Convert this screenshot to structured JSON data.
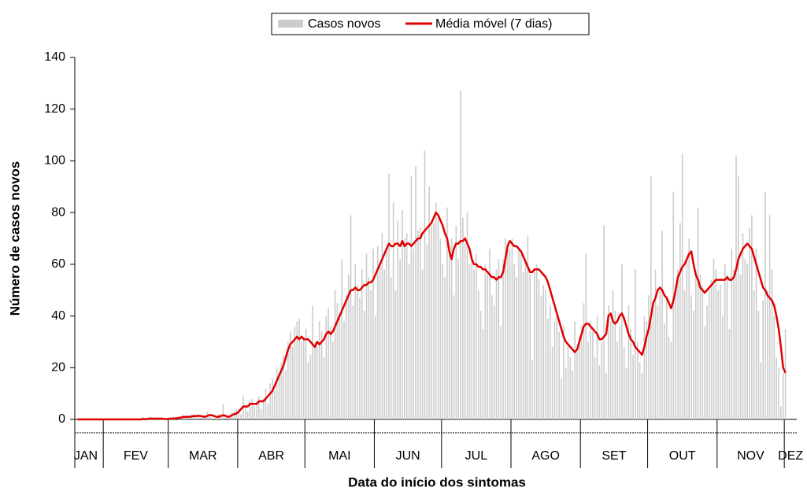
{
  "chart_data": {
    "type": "bar_line",
    "x_label": "Data do início dos sintomas",
    "y_label": "Número de casos novos",
    "categories": [
      "JAN",
      "FEV",
      "MAR",
      "ABR",
      "MAI",
      "JUN",
      "JUL",
      "AGO",
      "SET",
      "OUT",
      "NOV",
      "DEZ"
    ],
    "ylim": [
      0,
      140
    ],
    "yticks": [
      0,
      20,
      40,
      60,
      80,
      100,
      120,
      140
    ],
    "series": [
      {
        "name": "Casos novos",
        "color": "#cccccc",
        "mark": "bar",
        "values": [
          [
            0,
            0,
            0,
            0,
            0,
            0,
            0,
            0,
            0,
            0,
            0,
            0
          ],
          [
            0,
            0,
            0,
            0,
            0,
            0,
            0,
            0,
            0,
            0,
            0,
            0,
            0,
            0,
            0,
            0,
            0,
            1,
            0,
            0,
            1,
            1,
            0,
            0,
            0,
            0,
            0,
            0,
            0
          ],
          [
            0,
            0,
            1,
            0,
            1,
            1,
            2,
            1,
            1,
            0,
            2,
            2,
            1,
            1,
            0,
            1,
            1,
            3,
            2,
            1,
            0,
            1,
            2,
            2,
            6,
            0,
            0,
            1,
            3,
            3,
            4
          ],
          [
            4,
            2,
            9,
            6,
            3,
            7,
            8,
            5,
            7,
            9,
            4,
            8,
            12,
            6,
            14,
            16,
            11,
            20,
            18,
            22,
            25,
            19,
            30,
            34,
            28,
            36,
            38,
            39,
            30,
            32
          ],
          [
            35,
            22,
            25,
            44,
            30,
            28,
            38,
            34,
            24,
            40,
            43,
            36,
            30,
            50,
            45,
            40,
            62,
            38,
            48,
            56,
            79,
            44,
            60,
            52,
            47,
            58,
            42,
            64,
            55,
            50,
            66
          ],
          [
            40,
            67,
            60,
            72,
            58,
            65,
            95,
            55,
            84,
            50,
            77,
            62,
            81,
            70,
            72,
            60,
            94,
            66,
            98,
            73,
            74,
            58,
            104,
            68,
            90,
            75,
            76,
            84,
            78,
            70
          ],
          [
            60,
            55,
            82,
            65,
            70,
            48,
            75,
            62,
            127,
            78,
            68,
            80,
            60,
            62,
            58,
            64,
            50,
            42,
            35,
            60,
            56,
            66,
            48,
            44,
            58,
            62,
            36,
            62,
            70,
            68,
            66
          ],
          [
            70,
            60,
            55,
            66,
            64,
            57,
            62,
            71,
            56,
            23,
            58,
            60,
            54,
            48,
            52,
            50,
            39,
            44,
            28,
            38,
            42,
            34,
            16,
            36,
            20,
            28,
            24,
            19,
            38,
            26,
            32
          ],
          [
            36,
            45,
            64,
            30,
            38,
            34,
            24,
            40,
            21,
            30,
            75,
            18,
            44,
            38,
            50,
            42,
            30,
            36,
            60,
            28,
            20,
            44,
            35,
            25,
            58,
            30,
            22,
            18,
            40,
            38
          ],
          [
            48,
            94,
            42,
            58,
            44,
            50,
            73,
            37,
            47,
            32,
            30,
            88,
            52,
            58,
            76,
            103,
            50,
            62,
            70,
            48,
            42,
            58,
            82,
            56,
            52,
            36,
            44,
            50,
            54,
            62,
            58
          ],
          [
            50,
            52,
            40,
            60,
            56,
            35,
            66,
            58,
            102,
            94,
            56,
            72,
            62,
            60,
            74,
            79,
            50,
            66,
            42,
            22,
            46,
            88,
            50,
            79,
            58,
            40,
            24,
            20,
            5,
            18
          ],
          [
            35
          ]
        ]
      },
      {
        "name": "Média móvel (7 dias)",
        "color": "#e00000",
        "mark": "line",
        "values": [
          [
            0,
            0,
            0,
            0,
            0,
            0,
            0,
            0,
            0,
            0,
            0,
            0
          ],
          [
            0,
            0,
            0,
            0,
            0,
            0,
            0,
            0,
            0,
            0,
            0,
            0,
            0,
            0,
            0,
            0,
            0,
            0.1,
            0.1,
            0.1,
            0.3,
            0.3,
            0.3,
            0.3,
            0.3,
            0.3,
            0.3,
            0.1,
            0.1
          ],
          [
            0.3,
            0.3,
            0.4,
            0.4,
            0.6,
            0.7,
            0.9,
            1,
            1,
            1,
            1.1,
            1.3,
            1.3,
            1.4,
            1.3,
            1.1,
            1,
            1.4,
            1.7,
            1.6,
            1.3,
            1,
            1,
            1.3,
            1.6,
            1.4,
            1,
            1.1,
            1.7,
            2,
            2.3
          ],
          [
            3,
            4,
            5,
            5,
            5,
            6,
            6,
            6,
            6,
            7,
            7,
            7,
            8,
            9,
            10,
            11,
            13,
            15,
            17,
            19,
            21,
            24,
            27,
            29,
            30,
            31,
            32,
            31,
            32,
            31
          ],
          [
            31,
            31,
            30,
            29,
            28,
            30,
            29,
            30,
            31,
            33,
            34,
            33,
            34,
            36,
            38,
            40,
            42,
            44,
            46,
            48,
            50,
            50,
            51,
            50,
            50,
            51,
            52,
            52,
            53,
            53,
            54
          ],
          [
            56,
            58,
            60,
            62,
            64,
            66,
            68,
            67,
            67,
            68,
            68,
            67,
            69,
            67,
            68,
            68,
            67,
            68,
            69,
            70,
            70,
            72,
            73,
            74,
            75,
            76,
            78,
            80,
            79,
            77
          ],
          [
            75,
            72,
            70,
            65,
            62,
            66,
            68,
            68,
            69,
            69,
            70,
            68,
            66,
            62,
            60,
            60,
            59,
            59,
            58,
            58,
            57,
            56,
            55,
            55,
            54,
            55,
            55,
            57,
            62,
            67,
            69
          ],
          [
            68,
            67,
            67,
            66,
            65,
            63,
            61,
            59,
            57,
            57,
            58,
            58,
            58,
            57,
            56,
            55,
            53,
            50,
            47,
            44,
            41,
            38,
            35,
            32,
            30,
            29,
            28,
            27,
            26,
            27,
            30
          ],
          [
            33,
            36,
            37,
            37,
            36,
            35,
            34,
            33,
            31,
            31,
            32,
            33,
            40,
            41,
            38,
            37,
            38,
            40,
            41,
            39,
            36,
            33,
            31,
            30,
            28,
            27,
            26,
            25,
            28,
            32
          ],
          [
            35,
            40,
            45,
            47,
            50,
            51,
            50,
            48,
            47,
            45,
            43,
            46,
            50,
            55,
            57,
            59,
            60,
            62,
            64,
            65,
            60,
            56,
            54,
            51,
            50,
            49,
            50,
            51,
            52,
            53,
            54
          ],
          [
            54,
            54,
            54,
            54,
            55,
            54,
            54,
            55,
            58,
            62,
            64,
            66,
            67,
            68,
            67,
            66,
            63,
            60,
            57,
            54,
            51,
            50,
            48,
            47,
            46,
            44,
            40,
            35,
            28,
            20
          ],
          [
            18
          ]
        ]
      }
    ]
  }
}
